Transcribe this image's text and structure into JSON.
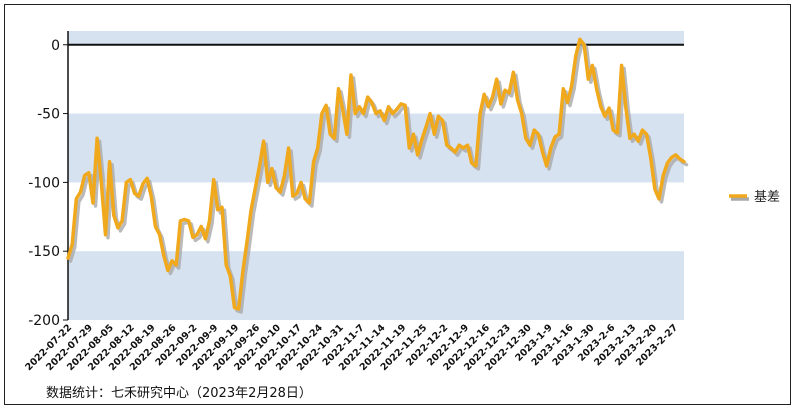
{
  "chart_data": {
    "type": "line",
    "xlabel": "",
    "ylabel": "",
    "ylim": [
      -200,
      10
    ],
    "yticks": [
      0,
      -50,
      -100,
      -150,
      -200
    ],
    "grid": "alternating horizontal bands",
    "legend_position": "right",
    "band_color": "#d6e2ef",
    "zero_line_color": "#111111",
    "x_tick_labels": [
      "2022-07-22",
      "2022-07-29",
      "2022-08-05",
      "2022-08-12",
      "2022-08-19",
      "2022-08-26",
      "2022-09-2",
      "2022-09-9",
      "2022-09-19",
      "2022-09-26",
      "2022-10-10",
      "2022-10-17",
      "2022-10-24",
      "2022-10-31",
      "2022-11-7",
      "2022-11-14",
      "2022-11-19",
      "2022-11-25",
      "2022-12-2",
      "2022-12-9",
      "2022-12-16",
      "2022-12-23",
      "2022-12-30",
      "2023-1-9",
      "2023-1-16",
      "2023-1-30",
      "2023-2-6",
      "2023-2-13",
      "2023-2-20",
      "2023-2-27"
    ],
    "series": [
      {
        "name": "基差",
        "color": "#f0a81c",
        "shadow_color": "#a9a9a9",
        "values": [
          -155,
          -145,
          -112,
          -107,
          -95,
          -93,
          -115,
          -68,
          -100,
          -138,
          -85,
          -124,
          -133,
          -128,
          -100,
          -98,
          -108,
          -110,
          -101,
          -97,
          -110,
          -132,
          -138,
          -153,
          -164,
          -157,
          -160,
          -128,
          -127,
          -128,
          -140,
          -138,
          -132,
          -141,
          -128,
          -98,
          -120,
          -118,
          -160,
          -168,
          -191,
          -192,
          -165,
          -143,
          -120,
          -104,
          -88,
          -70,
          -100,
          -90,
          -104,
          -107,
          -95,
          -75,
          -110,
          -108,
          -100,
          -112,
          -115,
          -85,
          -75,
          -50,
          -44,
          -65,
          -68,
          -32,
          -47,
          -65,
          -22,
          -50,
          -45,
          -50,
          -38,
          -42,
          -50,
          -48,
          -55,
          -45,
          -50,
          -47,
          -43,
          -44,
          -75,
          -65,
          -80,
          -69,
          -60,
          -50,
          -65,
          -52,
          -55,
          -73,
          -75,
          -78,
          -73,
          -75,
          -73,
          -86,
          -88,
          -50,
          -36,
          -45,
          -38,
          -25,
          -43,
          -33,
          -35,
          -20,
          -40,
          -50,
          -68,
          -73,
          -62,
          -65,
          -78,
          -88,
          -75,
          -67,
          -65,
          -32,
          -42,
          -30,
          -8,
          4,
          0,
          -25,
          -15,
          -32,
          -45,
          -52,
          -46,
          -62,
          -64,
          -15,
          -45,
          -68,
          -65,
          -70,
          -62,
          -65,
          -82,
          -105,
          -112,
          -95,
          -86,
          -82,
          -80,
          -83,
          -85
        ]
      }
    ]
  },
  "source_note": "数据统计：七禾研究中心（2023年2月28日）"
}
